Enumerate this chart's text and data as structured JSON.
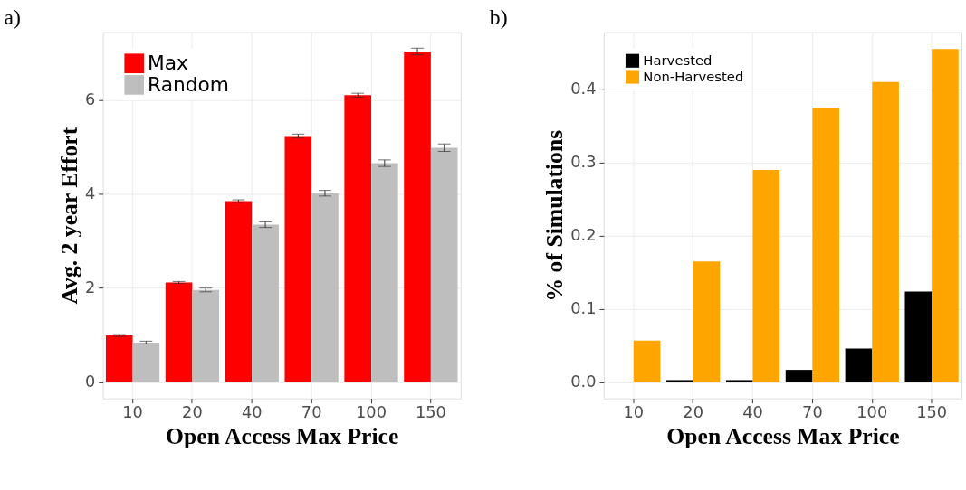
{
  "chart_data": [
    {
      "type": "bar",
      "title": "a)",
      "xlabel": "Open Access Max Price",
      "ylabel": "Avg. 2 year Effort",
      "categories": [
        "10",
        "20",
        "40",
        "70",
        "100",
        "150"
      ],
      "series": [
        {
          "name": "Max",
          "color": "#ff0000",
          "values": [
            0.99,
            2.12,
            3.85,
            5.24,
            6.11,
            7.04
          ],
          "errors": [
            0.02,
            0.02,
            0.03,
            0.04,
            0.04,
            0.07
          ]
        },
        {
          "name": "Random",
          "color": "#bebebe",
          "values": [
            0.84,
            1.96,
            3.35,
            4.02,
            4.66,
            4.99
          ],
          "errors": [
            0.03,
            0.04,
            0.06,
            0.06,
            0.07,
            0.08
          ]
        }
      ],
      "ylim": [
        -0.35,
        7.45
      ],
      "yticks": [
        0,
        2,
        4,
        6
      ],
      "grid": true,
      "legend": "top left"
    },
    {
      "type": "bar",
      "title": "b)",
      "xlabel": "Open Access Max Price",
      "ylabel": "% of Simulations",
      "categories": [
        "10",
        "20",
        "40",
        "70",
        "100",
        "150"
      ],
      "series": [
        {
          "name": "Harvested",
          "color": "#000000",
          "values": [
            0.001,
            0.003,
            0.003,
            0.017,
            0.046,
            0.124
          ]
        },
        {
          "name": "Non-Harvested",
          "color": "#ffa500",
          "values": [
            0.057,
            0.165,
            0.29,
            0.375,
            0.41,
            0.455
          ]
        }
      ],
      "ylim": [
        -0.022,
        0.478
      ],
      "yticks": [
        {
          "value": 0,
          "label": "0.0"
        },
        0.1,
        0.2,
        0.3,
        0.4
      ],
      "grid": true,
      "legend": "top left"
    }
  ]
}
